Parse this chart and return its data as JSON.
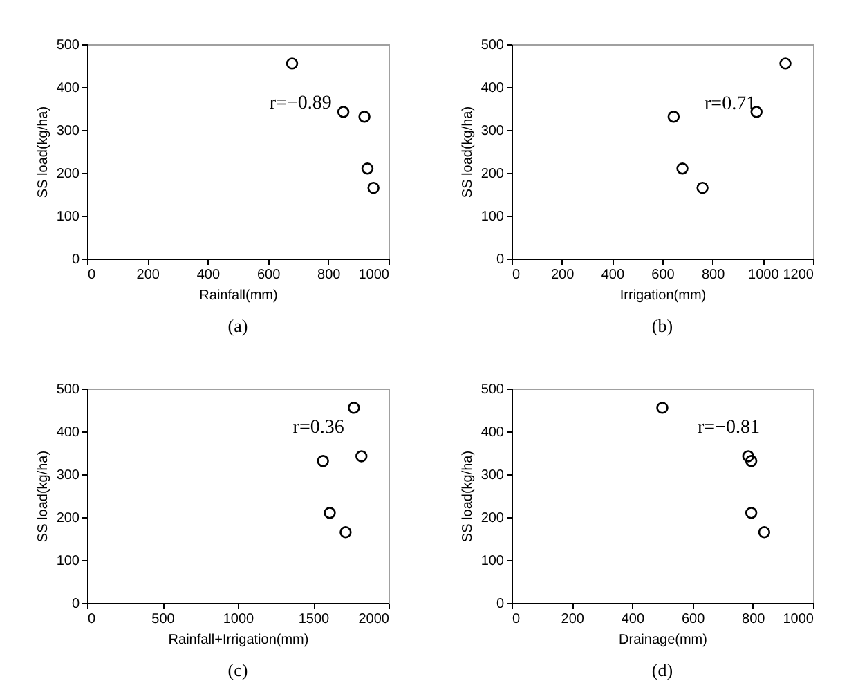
{
  "chart_data": [
    {
      "type": "scatter",
      "xlabel": "Rainfall(mm)",
      "ylabel": "SS load(kg/ha)",
      "x": [
        680,
        850,
        920,
        930,
        950
      ],
      "values": [
        455,
        342,
        331,
        210,
        165
      ],
      "color": "#000000",
      "marker": "circle",
      "xlim": [
        0,
        1000
      ],
      "xticks": [
        0,
        200,
        400,
        600,
        800,
        1000
      ],
      "ylim": [
        0,
        500
      ],
      "yticks": [
        0,
        100,
        200,
        300,
        400,
        500
      ],
      "grid": false,
      "annotations": [
        "r=−0.89",
        "(a)"
      ]
    },
    {
      "type": "scatter",
      "xlabel": "Irrigation(mm)",
      "ylabel": "SS load(kg/ha)",
      "x": [
        1090,
        975,
        645,
        680,
        760
      ],
      "values": [
        455,
        342,
        331,
        210,
        165
      ],
      "color": "#000000",
      "marker": "circle",
      "xlim": [
        0,
        1200
      ],
      "xticks": [
        0,
        200,
        400,
        600,
        800,
        1000,
        1200
      ],
      "ylim": [
        0,
        500
      ],
      "yticks": [
        0,
        100,
        200,
        300,
        400,
        500
      ],
      "grid": false,
      "annotations": [
        "r=0.71",
        "(b)"
      ]
    },
    {
      "type": "scatter",
      "xlabel": "Rainfall+Irrigation(mm)",
      "ylabel": "SS load(kg/ha)",
      "x": [
        1770,
        1820,
        1565,
        1610,
        1715
      ],
      "values": [
        455,
        342,
        331,
        210,
        165
      ],
      "color": "#000000",
      "marker": "circle",
      "xlim": [
        0,
        2000
      ],
      "xticks": [
        0,
        500,
        1000,
        1500,
        2000
      ],
      "ylim": [
        0,
        500
      ],
      "yticks": [
        0,
        100,
        200,
        300,
        400,
        500
      ],
      "grid": false,
      "annotations": [
        "r=0.36",
        "(c)"
      ]
    },
    {
      "type": "scatter",
      "xlabel": "Drainage(mm)",
      "ylabel": "SS load(kg/ha)",
      "x": [
        500,
        785,
        795,
        795,
        838
      ],
      "values": [
        455,
        342,
        331,
        210,
        165
      ],
      "color": "#000000",
      "marker": "circle",
      "xlim": [
        0,
        1000
      ],
      "xticks": [
        0,
        200,
        400,
        600,
        800,
        1000
      ],
      "ylim": [
        0,
        500
      ],
      "yticks": [
        0,
        100,
        200,
        300,
        400,
        500
      ],
      "grid": false,
      "annotations": [
        "r=−0.81",
        "(d)"
      ]
    }
  ]
}
